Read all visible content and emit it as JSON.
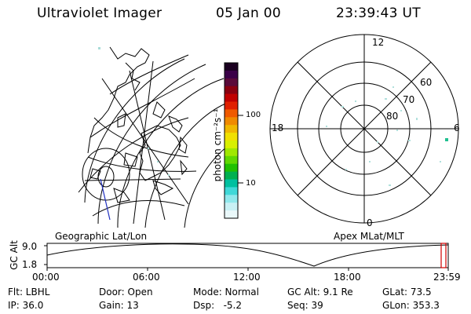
{
  "header": {
    "instrument": "Ultraviolet Imager",
    "date": "05 Jan 00",
    "time": "23:39:43 UT"
  },
  "colorbar": {
    "unit_label": "photon cm⁻²s⁻¹",
    "ticks": [
      "100",
      "10"
    ],
    "scale": "log",
    "colors": [
      "#1a0020",
      "#3a0048",
      "#5a0a3a",
      "#8a0010",
      "#c00000",
      "#e02000",
      "#f05a00",
      "#f08a00",
      "#f0b800",
      "#f0e000",
      "#d8f000",
      "#a0e800",
      "#60d800",
      "#20c000",
      "#00b050",
      "#00c0a0",
      "#40d8d8",
      "#90e8ec",
      "#c8f0f4",
      "#eaf8fa"
    ]
  },
  "polar": {
    "mlt_labels": {
      "top": "12",
      "left": "18",
      "right": "6",
      "bottom": "0"
    },
    "lat_labels": [
      "60",
      "70",
      "80"
    ]
  },
  "panel_labels": {
    "left": "Geographic Lat/Lon",
    "right": "Apex MLat/MLT"
  },
  "altitude_plot": {
    "ylabel": "GC Alt",
    "yticks": [
      "9.0",
      "1.8"
    ],
    "xticks": [
      "00:00",
      "06:00",
      "12:00",
      "18:00",
      "23:59"
    ],
    "marker_color": "#d00000"
  },
  "info": {
    "filter": "Flt: LBHL",
    "door": "Door: Open",
    "mode": "Mode: Normal",
    "gc_alt": "GC Alt: 9.1 Re",
    "glat": "GLat: 73.5",
    "ip": "IP: 36.0",
    "gain": "Gain: 13",
    "dsp": "Dsp:   -5.2",
    "seq": "Seq: 39",
    "glon": "GLon: 353.3"
  }
}
